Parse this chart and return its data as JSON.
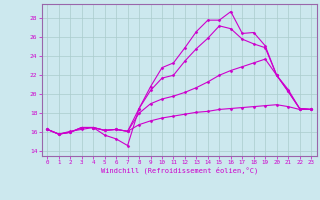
{
  "xlabel": "Windchill (Refroidissement éolien,°C)",
  "bg_color": "#cce8ee",
  "grid_color": "#aacccc",
  "line_color": "#cc00cc",
  "spine_color": "#9966aa",
  "xlim": [
    -0.5,
    23.5
  ],
  "ylim": [
    13.5,
    29.5
  ],
  "yticks": [
    14,
    16,
    18,
    20,
    22,
    24,
    26,
    28
  ],
  "xticks": [
    0,
    1,
    2,
    3,
    4,
    5,
    6,
    7,
    8,
    9,
    10,
    11,
    12,
    13,
    14,
    15,
    16,
    17,
    18,
    19,
    20,
    21,
    22,
    23
  ],
  "lines": [
    [
      16.3,
      15.8,
      16.1,
      16.3,
      16.5,
      15.7,
      15.3,
      14.6,
      18.5,
      20.8,
      22.8,
      23.3,
      24.9,
      26.6,
      27.8,
      27.8,
      28.7,
      26.4,
      26.5,
      25.1,
      22.0,
      20.3,
      18.5,
      18.4
    ],
    [
      16.3,
      15.8,
      16.0,
      16.5,
      16.5,
      16.2,
      16.3,
      16.1,
      18.5,
      20.4,
      21.7,
      22.0,
      23.5,
      24.8,
      25.9,
      27.2,
      26.9,
      25.8,
      25.3,
      24.9,
      22.0,
      20.3,
      18.5,
      18.4
    ],
    [
      16.3,
      15.8,
      16.0,
      16.5,
      16.5,
      16.2,
      16.3,
      16.1,
      18.0,
      19.0,
      19.5,
      19.8,
      20.2,
      20.7,
      21.3,
      22.0,
      22.5,
      22.9,
      23.3,
      23.7,
      22.0,
      20.5,
      18.5,
      18.4
    ],
    [
      16.3,
      15.8,
      16.0,
      16.5,
      16.5,
      16.2,
      16.3,
      16.1,
      16.8,
      17.2,
      17.5,
      17.7,
      17.9,
      18.1,
      18.2,
      18.4,
      18.5,
      18.6,
      18.7,
      18.8,
      18.9,
      18.7,
      18.4,
      18.4
    ]
  ]
}
